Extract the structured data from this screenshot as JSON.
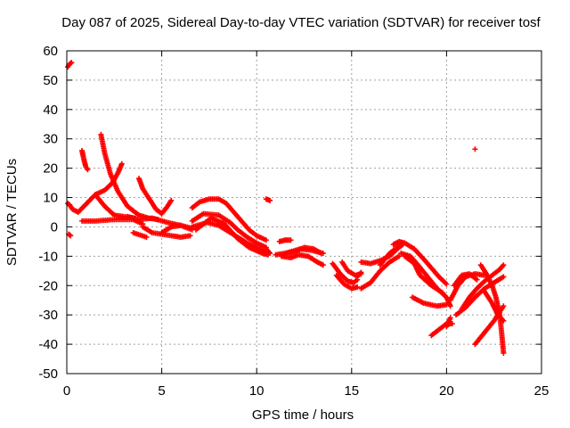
{
  "chart_data": {
    "type": "scatter",
    "title": "Day 087 of 2025, Sidereal Day-to-day VTEC variation (SDTVAR) for receiver tosf",
    "xlabel": "GPS time / hours",
    "ylabel": "SDTVAR / TECUs",
    "xlim": [
      0,
      25
    ],
    "ylim": [
      -50,
      60
    ],
    "xticks": [
      0,
      5,
      10,
      15,
      20,
      25
    ],
    "yticks": [
      -50,
      -40,
      -30,
      -20,
      -10,
      0,
      10,
      20,
      30,
      40,
      50,
      60
    ],
    "grid": true,
    "marker": "+",
    "colors": {
      "series": "#ff0000",
      "grid": "#a0a0a0",
      "axes": "#000000"
    },
    "series": [
      {
        "name": "SDTVAR",
        "segments": [
          [
            [
              0.05,
              54.5
            ],
            [
              0.15,
              55.5
            ],
            [
              0.25,
              56.0
            ]
          ],
          [
            [
              0.05,
              8.0
            ],
            [
              0.15,
              7.5
            ],
            [
              0.25,
              6.5
            ]
          ],
          [
            [
              0.1,
              -2.5
            ],
            [
              0.2,
              -3.0
            ]
          ],
          [
            [
              0.3,
              6.0
            ],
            [
              0.6,
              5.0
            ],
            [
              0.9,
              7.0
            ],
            [
              1.2,
              9.0
            ],
            [
              1.5,
              11.0
            ],
            [
              2.0,
              12.5
            ],
            [
              2.4,
              15.0
            ],
            [
              2.7,
              18.5
            ],
            [
              2.9,
              21.5
            ]
          ],
          [
            [
              0.8,
              26.0
            ],
            [
              0.9,
              23.0
            ],
            [
              1.0,
              20.5
            ],
            [
              1.1,
              19.5
            ]
          ],
          [
            [
              1.8,
              31.5
            ],
            [
              2.0,
              25.0
            ],
            [
              2.3,
              18.0
            ],
            [
              2.7,
              12.0
            ],
            [
              3.2,
              7.0
            ],
            [
              3.8,
              4.0
            ],
            [
              4.3,
              3.0
            ],
            [
              4.8,
              2.5
            ]
          ],
          [
            [
              1.5,
              11.0
            ],
            [
              2.0,
              7.0
            ],
            [
              2.5,
              4.0
            ],
            [
              3.0,
              3.5
            ],
            [
              3.6,
              3.0
            ]
          ],
          [
            [
              0.8,
              2.0
            ],
            [
              1.5,
              2.0
            ],
            [
              2.5,
              2.5
            ],
            [
              3.5,
              2.5
            ],
            [
              4.0,
              1.0
            ]
          ],
          [
            [
              3.2,
              3.5
            ],
            [
              3.8,
              2.5
            ],
            [
              4.5,
              3.0
            ],
            [
              5.3,
              1.5
            ],
            [
              6.0,
              0.5
            ],
            [
              6.6,
              -0.5
            ]
          ],
          [
            [
              3.8,
              16.5
            ],
            [
              4.0,
              13.0
            ],
            [
              4.3,
              10.0
            ],
            [
              4.7,
              6.0
            ],
            [
              5.0,
              4.5
            ],
            [
              5.3,
              7.0
            ],
            [
              5.5,
              9.0
            ]
          ],
          [
            [
              4.0,
              0.0
            ],
            [
              4.5,
              -2.0
            ],
            [
              5.5,
              -3.0
            ],
            [
              6.0,
              -3.5
            ],
            [
              6.5,
              -3.0
            ]
          ],
          [
            [
              3.5,
              -2.0
            ],
            [
              4.2,
              -3.5
            ]
          ],
          [
            [
              5.0,
              -2.0
            ],
            [
              5.5,
              0.0
            ],
            [
              6.0,
              0.5
            ],
            [
              6.6,
              -1.0
            ]
          ],
          [
            [
              6.6,
              6.5
            ],
            [
              7.0,
              8.5
            ],
            [
              7.5,
              9.5
            ],
            [
              8.0,
              9.5
            ],
            [
              8.4,
              8.0
            ],
            [
              8.8,
              5.0
            ],
            [
              9.2,
              2.0
            ],
            [
              9.6,
              -1.0
            ],
            [
              10.0,
              -3.0
            ],
            [
              10.5,
              -4.5
            ]
          ],
          [
            [
              6.6,
              2.0
            ],
            [
              7.2,
              4.5
            ],
            [
              8.0,
              4.0
            ],
            [
              8.6,
              1.5
            ],
            [
              9.0,
              -1.0
            ],
            [
              9.5,
              -3.5
            ],
            [
              10.0,
              -5.5
            ],
            [
              10.5,
              -7.0
            ]
          ],
          [
            [
              6.6,
              0.0
            ],
            [
              7.4,
              1.5
            ],
            [
              8.0,
              0.5
            ],
            [
              8.5,
              -1.5
            ],
            [
              9.0,
              -3.5
            ],
            [
              9.5,
              -5.5
            ],
            [
              10.0,
              -7.0
            ],
            [
              10.5,
              -8.5
            ]
          ],
          [
            [
              6.8,
              -1.0
            ],
            [
              7.6,
              3.0
            ],
            [
              8.3,
              1.0
            ],
            [
              9.0,
              -4.0
            ],
            [
              9.6,
              -7.0
            ],
            [
              10.3,
              -9.0
            ],
            [
              10.6,
              -9.5
            ]
          ],
          [
            [
              10.5,
              9.5
            ],
            [
              10.7,
              9.0
            ]
          ],
          [
            [
              10.5,
              -7.5
            ],
            [
              10.7,
              -9.0
            ]
          ],
          [
            [
              11.2,
              -5.0
            ],
            [
              11.5,
              -4.5
            ],
            [
              11.8,
              -4.5
            ]
          ],
          [
            [
              11.0,
              -9.5
            ],
            [
              11.5,
              -9.0
            ],
            [
              12.0,
              -8.5
            ],
            [
              12.5,
              -7.0
            ],
            [
              13.0,
              -7.5
            ],
            [
              13.4,
              -9.0
            ]
          ],
          [
            [
              11.3,
              -10.0
            ],
            [
              11.8,
              -10.5
            ],
            [
              12.2,
              -9.5
            ],
            [
              12.7,
              -10.0
            ],
            [
              13.2,
              -12.0
            ],
            [
              13.5,
              -13.0
            ]
          ],
          [
            [
              11.5,
              -9.0
            ],
            [
              12.3,
              -7.5
            ],
            [
              12.9,
              -8.0
            ],
            [
              13.5,
              -9.0
            ]
          ],
          [
            [
              14.0,
              -12.5
            ],
            [
              14.4,
              -16.0
            ],
            [
              14.8,
              -18.5
            ],
            [
              15.1,
              -19.0
            ],
            [
              15.3,
              -18.0
            ]
          ],
          [
            [
              14.2,
              -16.5
            ],
            [
              14.6,
              -19.5
            ],
            [
              15.0,
              -21.0
            ],
            [
              15.3,
              -20.5
            ]
          ],
          [
            [
              14.5,
              -12.0
            ],
            [
              14.8,
              -15.0
            ],
            [
              15.2,
              -16.5
            ],
            [
              15.5,
              -16.0
            ]
          ],
          [
            [
              15.3,
              -17.0
            ],
            [
              15.5,
              -15.5
            ]
          ],
          [
            [
              15.5,
              -12.0
            ],
            [
              16.0,
              -12.5
            ],
            [
              16.5,
              -11.5
            ],
            [
              17.0,
              -10.0
            ],
            [
              17.4,
              -7.5
            ],
            [
              17.7,
              -6.0
            ]
          ],
          [
            [
              15.5,
              -21.0
            ],
            [
              16.0,
              -19.0
            ],
            [
              16.5,
              -15.0
            ],
            [
              17.0,
              -12.0
            ],
            [
              17.5,
              -10.0
            ]
          ],
          [
            [
              16.5,
              -13.0
            ],
            [
              17.0,
              -9.0
            ],
            [
              17.5,
              -6.5
            ]
          ],
          [
            [
              17.2,
              -6.0
            ],
            [
              17.5,
              -5.0
            ],
            [
              17.8,
              -5.5
            ],
            [
              18.3,
              -7.5
            ],
            [
              18.8,
              -11.0
            ],
            [
              19.2,
              -14.0
            ],
            [
              19.6,
              -17.0
            ],
            [
              20.0,
              -19.5
            ]
          ],
          [
            [
              17.6,
              -9.0
            ],
            [
              18.1,
              -10.0
            ],
            [
              18.5,
              -13.0
            ],
            [
              19.0,
              -17.0
            ],
            [
              19.5,
              -21.0
            ],
            [
              20.0,
              -24.0
            ],
            [
              20.2,
              -27.0
            ]
          ],
          [
            [
              17.8,
              -10.0
            ],
            [
              18.3,
              -12.5
            ],
            [
              18.6,
              -16.5
            ],
            [
              19.2,
              -20.0
            ],
            [
              19.8,
              -22.5
            ]
          ],
          [
            [
              18.2,
              -24.0
            ],
            [
              18.8,
              -26.0
            ],
            [
              19.5,
              -27.0
            ],
            [
              20.0,
              -26.5
            ]
          ],
          [
            [
              19.2,
              -37.0
            ],
            [
              19.6,
              -35.0
            ],
            [
              20.0,
              -33.0
            ],
            [
              20.3,
              -33.0
            ]
          ],
          [
            [
              20.0,
              -34.0
            ],
            [
              20.2,
              -31.0
            ]
          ],
          [
            [
              20.2,
              -25.0
            ],
            [
              20.6,
              -20.0
            ],
            [
              21.0,
              -17.0
            ],
            [
              21.5,
              -16.0
            ],
            [
              22.0,
              -16.5
            ]
          ],
          [
            [
              20.4,
              -20.0
            ],
            [
              20.8,
              -16.5
            ],
            [
              21.2,
              -16.0
            ],
            [
              21.6,
              -18.0
            ]
          ],
          [
            [
              20.8,
              -28.0
            ],
            [
              21.2,
              -24.0
            ],
            [
              21.6,
              -21.0
            ],
            [
              22.0,
              -18.5
            ],
            [
              22.4,
              -16.5
            ],
            [
              22.8,
              -14.5
            ],
            [
              23.0,
              -13.0
            ]
          ],
          [
            [
              20.5,
              -30.0
            ],
            [
              21.0,
              -27.5
            ],
            [
              21.5,
              -24.0
            ],
            [
              22.0,
              -21.0
            ],
            [
              22.5,
              -19.0
            ],
            [
              23.0,
              -17.0
            ]
          ],
          [
            [
              21.5,
              -40.0
            ],
            [
              22.0,
              -36.0
            ],
            [
              22.5,
              -32.0
            ],
            [
              22.8,
              -29.0
            ],
            [
              23.0,
              -27.0
            ]
          ],
          [
            [
              21.8,
              -13.0
            ],
            [
              22.1,
              -16.0
            ],
            [
              22.4,
              -20.0
            ],
            [
              22.6,
              -24.0
            ],
            [
              22.8,
              -30.0
            ],
            [
              22.9,
              -36.0
            ],
            [
              23.0,
              -43.0
            ]
          ],
          [
            [
              22.0,
              -22.0
            ],
            [
              22.4,
              -26.0
            ],
            [
              22.7,
              -30.0
            ],
            [
              23.0,
              -32.0
            ]
          ],
          [
            [
              21.5,
              26.5
            ]
          ]
        ]
      }
    ]
  }
}
